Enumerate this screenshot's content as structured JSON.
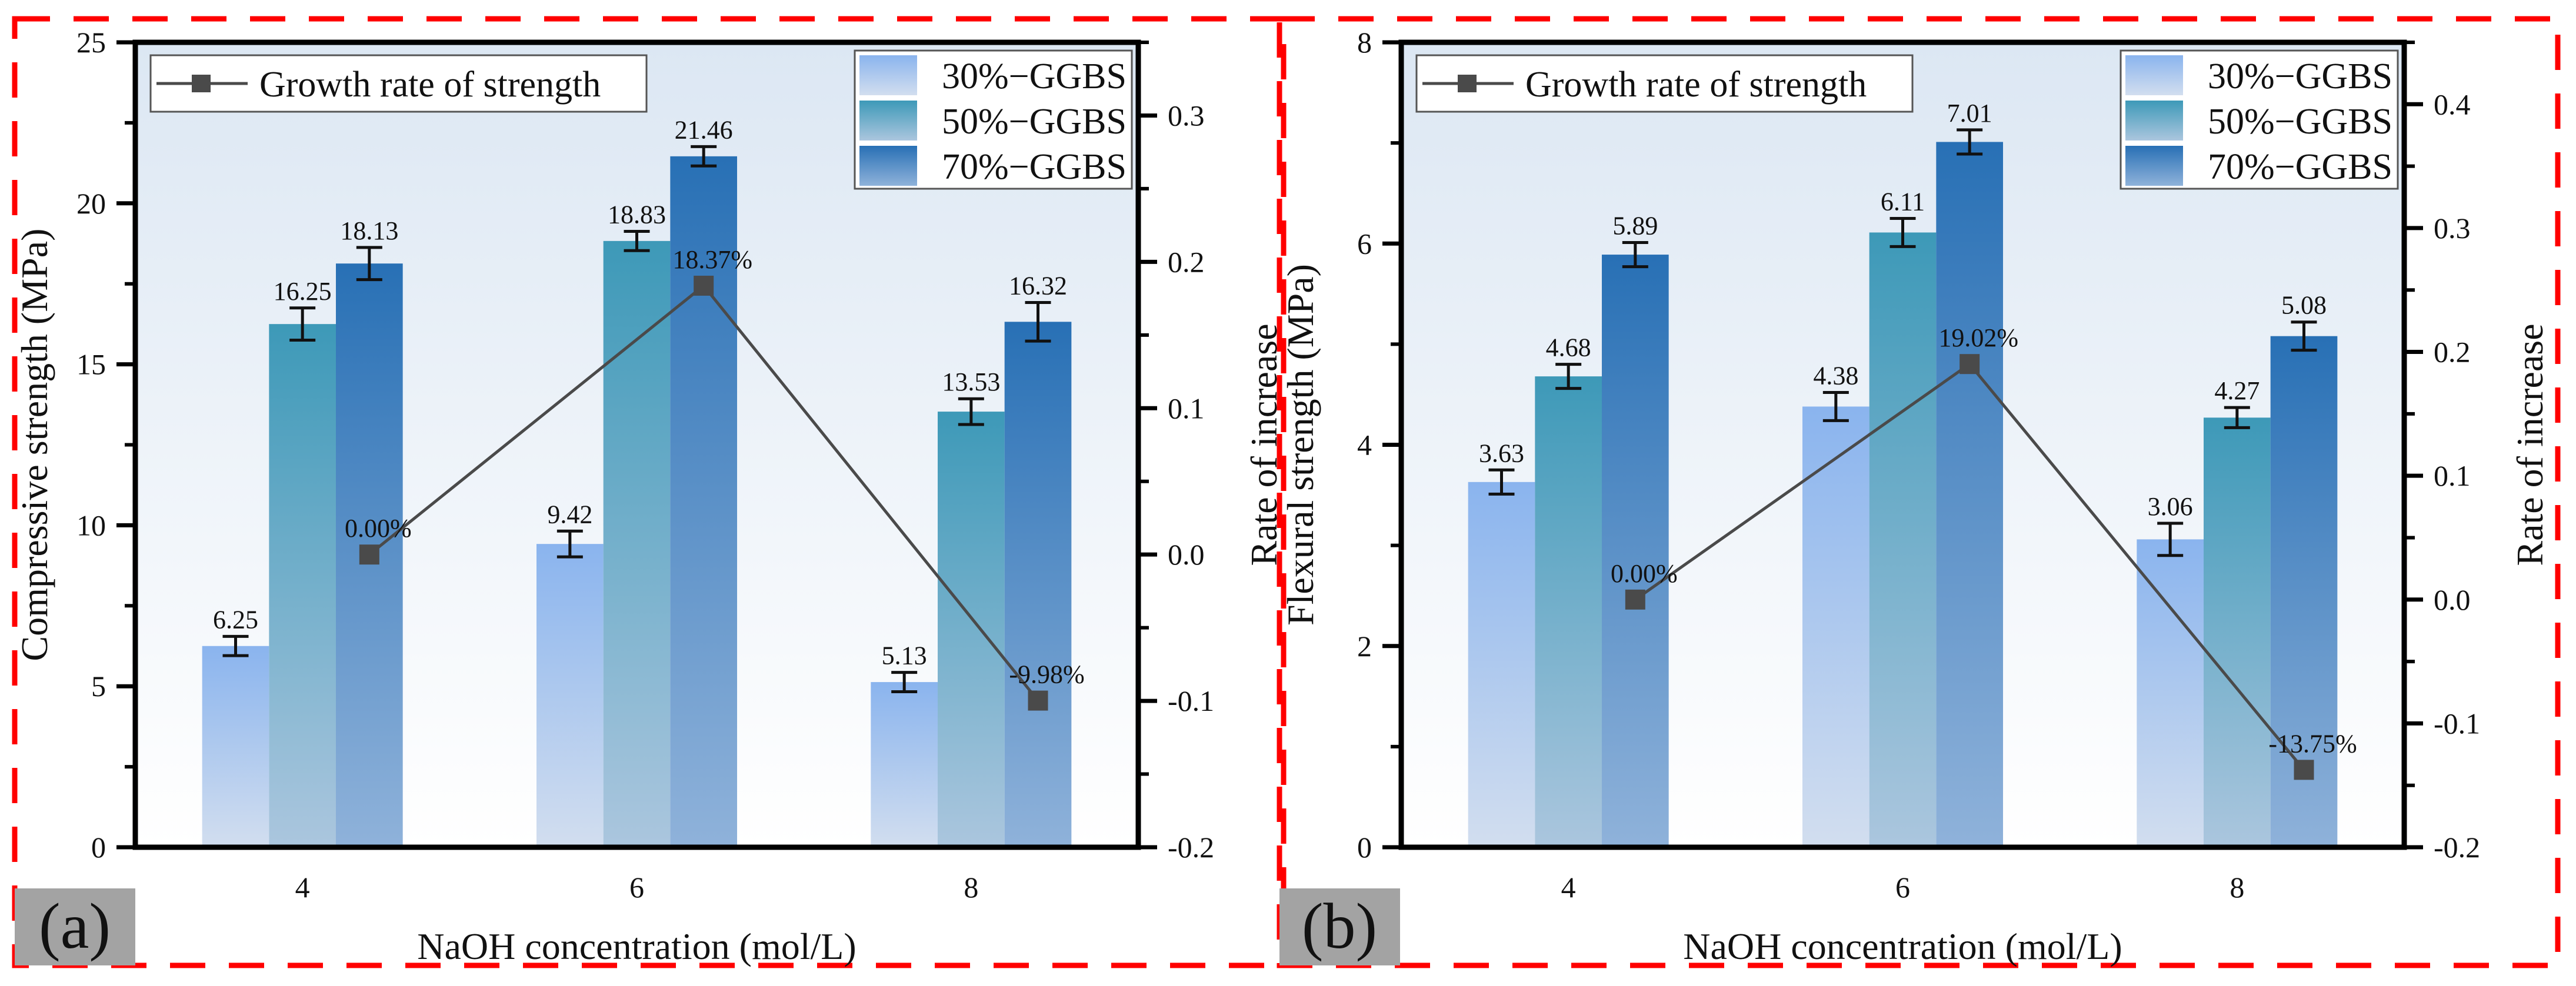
{
  "chart_data": [
    {
      "type": "bar",
      "panel_label": "(a)",
      "xlabel": "NaOH concentration (mol/L)",
      "ylabel": "Compressive strength (MPa)",
      "y2label": "Rate of increase",
      "categories": [
        "4",
        "6",
        "8"
      ],
      "xlim": [
        3,
        9
      ],
      "ylim": [
        0,
        25
      ],
      "yticks": [
        0,
        5,
        10,
        15,
        20,
        25
      ],
      "y2lim": [
        -0.2,
        0.35
      ],
      "y2ticks": [
        "-0.2",
        "-0.1",
        "0.0",
        "0.1",
        "0.2",
        "0.3"
      ],
      "series": [
        {
          "name": "30%−GGBS",
          "values": [
            6.25,
            9.42,
            5.13
          ],
          "labels": [
            "6.25",
            "9.42",
            "5.13"
          ],
          "errors": [
            0.3,
            0.4,
            0.3
          ],
          "color_top": "#8ab4ee",
          "color_bottom": "#d2deef"
        },
        {
          "name": "50%−GGBS",
          "values": [
            16.25,
            18.83,
            13.53
          ],
          "labels": [
            "16.25",
            "18.83",
            "13.53"
          ],
          "errors": [
            0.5,
            0.3,
            0.4
          ],
          "color_top": "#3d99b8",
          "color_bottom": "#abc6de"
        },
        {
          "name": "70%−GGBS",
          "values": [
            18.13,
            21.46,
            16.32
          ],
          "labels": [
            "18.13",
            "21.46",
            "16.32"
          ],
          "errors": [
            0.5,
            0.3,
            0.6
          ],
          "color_top": "#2870b5",
          "color_bottom": "#8fb2da"
        }
      ],
      "line": {
        "name": "Growth rate of strength",
        "values": [
          0.0,
          0.1837,
          -0.0998
        ],
        "labels": [
          "0.00%",
          "18.37%",
          "-9.98%"
        ],
        "color": "#4a4a4a"
      }
    },
    {
      "type": "bar",
      "panel_label": "(b)",
      "xlabel": "NaOH concentration (mol/L)",
      "ylabel": "Flexural strength (MPa)",
      "y2label": "Rate of increase",
      "categories": [
        "4",
        "6",
        "8"
      ],
      "xlim": [
        3,
        9
      ],
      "ylim": [
        0,
        8
      ],
      "yticks": [
        0,
        2,
        4,
        6,
        8
      ],
      "y2lim": [
        -0.2,
        0.45
      ],
      "y2ticks": [
        "-0.2",
        "-0.1",
        "0.0",
        "0.1",
        "0.2",
        "0.3",
        "0.4"
      ],
      "series": [
        {
          "name": "30%−GGBS",
          "values": [
            3.63,
            4.38,
            3.06
          ],
          "labels": [
            "3.63",
            "4.38",
            "3.06"
          ],
          "errors": [
            0.12,
            0.14,
            0.16
          ],
          "color_top": "#8ab4ee",
          "color_bottom": "#d2deef"
        },
        {
          "name": "50%−GGBS",
          "values": [
            4.68,
            6.11,
            4.27
          ],
          "labels": [
            "4.68",
            "6.11",
            "4.27"
          ],
          "errors": [
            0.12,
            0.14,
            0.1
          ],
          "color_top": "#3d99b8",
          "color_bottom": "#abc6de"
        },
        {
          "name": "70%−GGBS",
          "values": [
            5.89,
            7.01,
            5.08
          ],
          "labels": [
            "5.89",
            "7.01",
            "5.08"
          ],
          "errors": [
            0.12,
            0.12,
            0.14
          ],
          "color_top": "#2870b5",
          "color_bottom": "#8fb2da"
        }
      ],
      "line": {
        "name": "Growth rate of strength",
        "values": [
          0.0,
          0.1902,
          -0.1375
        ],
        "labels": [
          "0.00%",
          "19.02%",
          "-13.75%"
        ],
        "color": "#4a4a4a"
      }
    }
  ],
  "style": {
    "frame_color": "#ff0000",
    "panel_label_bg": "#a3a3a3",
    "plot_bg_top": "#dce7f3",
    "plot_bg_bottom": "#ffffff"
  }
}
